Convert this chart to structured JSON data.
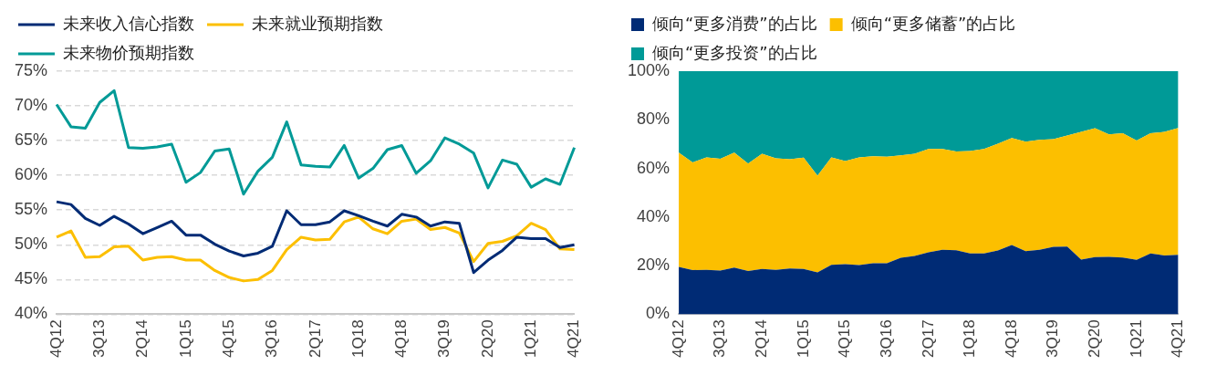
{
  "chart_data": [
    {
      "type": "line",
      "categories": [
        "4Q12",
        null,
        null,
        "3Q13",
        null,
        null,
        "2Q14",
        null,
        null,
        "1Q15",
        null,
        null,
        "4Q15",
        null,
        null,
        "3Q16",
        null,
        null,
        "2Q17",
        null,
        null,
        "1Q18",
        null,
        null,
        "4Q18",
        null,
        null,
        "3Q19",
        null,
        null,
        "2Q20",
        null,
        null,
        "1Q21",
        null,
        null,
        "4Q21"
      ],
      "series": [
        {
          "name": "未来收入信心指数",
          "color": "#002b75",
          "values": [
            56.2,
            55.8,
            53.8,
            52.8,
            54.1,
            53,
            51.6,
            52.5,
            53.4,
            51.4,
            51.4,
            50.1,
            49.1,
            48.4,
            48.8,
            49.8,
            54.9,
            52.9,
            52.9,
            53.3,
            54.9,
            54.2,
            53.4,
            52.7,
            54.4,
            54.0,
            52.7,
            53.3,
            53.1,
            46,
            47.8,
            49.2,
            51.1,
            50.9,
            50.9,
            49.6,
            50
          ]
        },
        {
          "name": "未来就业预期指数",
          "color": "#fcbf00",
          "values": [
            51.1,
            52,
            48.2,
            48.3,
            49.7,
            49.8,
            47.8,
            48.2,
            48.3,
            47.8,
            47.8,
            46.3,
            45.3,
            44.8,
            45,
            46.3,
            49.3,
            51.1,
            50.7,
            50.8,
            53.3,
            54,
            52.3,
            51.6,
            53.4,
            53.7,
            52.2,
            52.5,
            51.7,
            47.6,
            50.2,
            50.5,
            51.3,
            53.1,
            52.2,
            49.4,
            49.3
          ]
        },
        {
          "name": "未来物价预期指数",
          "color": "#009a97",
          "values": [
            70.2,
            67,
            66.8,
            70.5,
            72.2,
            64,
            63.9,
            64.1,
            64.5,
            59,
            60.4,
            63.5,
            63.8,
            57.3,
            60.6,
            62.6,
            67.7,
            61.5,
            61.3,
            61.2,
            64.3,
            59.6,
            61,
            63.7,
            64.3,
            60.3,
            62.1,
            65.4,
            64.5,
            63.2,
            58.2,
            62.2,
            61.6,
            58.3,
            59.5,
            58.7,
            64
          ]
        }
      ],
      "ylim": [
        40,
        75
      ],
      "yticks": [
        {
          "value": 40,
          "label": "40%"
        },
        {
          "value": 45,
          "label": "45%"
        },
        {
          "value": 50,
          "label": "50%"
        },
        {
          "value": 55,
          "label": "55%"
        },
        {
          "value": 60,
          "label": "60%"
        },
        {
          "value": 65,
          "label": "65%"
        },
        {
          "value": 70,
          "label": "70%"
        },
        {
          "value": 75,
          "label": "75%"
        }
      ],
      "grid": "y",
      "legend": "top left",
      "line_style": "solid"
    },
    {
      "type": "area",
      "stacked": true,
      "categories": [
        "4Q12",
        null,
        null,
        "3Q13",
        null,
        null,
        "2Q14",
        null,
        null,
        "1Q15",
        null,
        null,
        "4Q15",
        null,
        null,
        "3Q16",
        null,
        null,
        "2Q17",
        null,
        null,
        "1Q18",
        null,
        null,
        "4Q18",
        null,
        null,
        "3Q19",
        null,
        null,
        "2Q20",
        null,
        null,
        "1Q21",
        null,
        null,
        "4Q21"
      ],
      "series": [
        {
          "name": "倾向“更多消费”的占比",
          "color": "#002b75",
          "values": [
            19.5,
            18.2,
            18.3,
            18,
            19.2,
            17.8,
            18.6,
            18.3,
            18.8,
            18.6,
            17.2,
            20.3,
            20.6,
            20.2,
            21,
            21,
            23.2,
            24,
            25.5,
            26.5,
            26.3,
            25,
            25,
            26.2,
            28.5,
            26,
            26.5,
            27.7,
            27.8,
            22.5,
            23.5,
            23.6,
            23.3,
            22.4,
            25,
            24.2,
            24.5
          ]
        },
        {
          "name": "倾向“更多储蓄”的占比",
          "color": "#fcbf00",
          "values": [
            47,
            44.3,
            46.2,
            46,
            47.3,
            44.2,
            47.4,
            45.9,
            45,
            45.8,
            39.8,
            44.2,
            42.4,
            44.3,
            44,
            43.8,
            42.2,
            42,
            42.5,
            41.5,
            40.7,
            42.2,
            43,
            44,
            44,
            45,
            45.3,
            44.3,
            45.7,
            52.5,
            53,
            50.4,
            51.2,
            49.1,
            49.5,
            50.8,
            52.1
          ]
        },
        {
          "name": "倾向“更多投资”的占比",
          "color": "#009a97",
          "values": [
            33.5,
            37.5,
            35.5,
            36,
            33.5,
            38,
            34,
            35.8,
            36.2,
            35.6,
            43,
            35.5,
            37,
            35.5,
            35,
            35.2,
            34.6,
            34,
            32,
            32,
            33,
            32.8,
            32,
            29.8,
            27.5,
            29,
            28.2,
            28,
            26.5,
            25,
            23.5,
            26,
            25.5,
            28.5,
            25.5,
            25,
            23.4
          ]
        }
      ],
      "ylim": [
        0,
        100
      ],
      "yticks": [
        {
          "value": 0,
          "label": "0%"
        },
        {
          "value": 20,
          "label": "20%"
        },
        {
          "value": 40,
          "label": "40%"
        },
        {
          "value": 60,
          "label": "60%"
        },
        {
          "value": 80,
          "label": "80%"
        },
        {
          "value": 100,
          "label": "100%"
        }
      ],
      "legend": "top left"
    }
  ]
}
